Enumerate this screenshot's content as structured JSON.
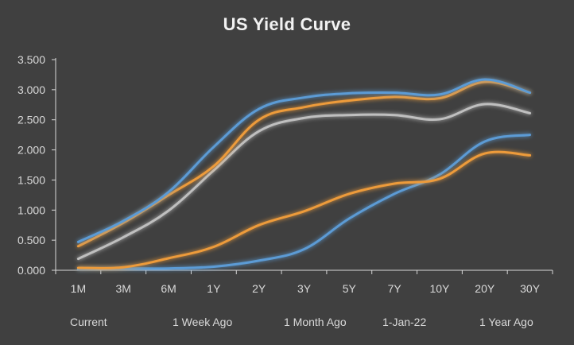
{
  "chart_data": {
    "type": "line",
    "title": "US Yield Curve",
    "xlabel": "",
    "ylabel": "",
    "categories": [
      "1M",
      "3M",
      "6M",
      "1Y",
      "2Y",
      "3Y",
      "5Y",
      "7Y",
      "10Y",
      "20Y",
      "30Y"
    ],
    "ylim": [
      0,
      3.5
    ],
    "yticks": [
      "0.000",
      "0.500",
      "1.000",
      "1.500",
      "2.000",
      "2.500",
      "3.000",
      "3.500"
    ],
    "grid": false,
    "legend_position": "bottom",
    "series": [
      {
        "name": "Current",
        "color": "#5b9bd5",
        "values": [
          0.47,
          0.82,
          1.3,
          2.05,
          2.68,
          2.87,
          2.94,
          2.95,
          2.92,
          3.17,
          2.95
        ]
      },
      {
        "name": "1 Week Ago",
        "color": "#ed9b3a",
        "values": [
          0.4,
          0.79,
          1.25,
          1.73,
          2.5,
          2.71,
          2.82,
          2.88,
          2.86,
          3.13,
          2.95
        ]
      },
      {
        "name": "1 Month Ago",
        "color": "#bfbfbf",
        "values": [
          0.19,
          0.55,
          0.99,
          1.66,
          2.31,
          2.53,
          2.58,
          2.58,
          2.51,
          2.76,
          2.61
        ]
      },
      {
        "name": "1-Jan-22",
        "color": "#ed9b3a",
        "values": [
          0.04,
          0.05,
          0.2,
          0.39,
          0.75,
          0.98,
          1.27,
          1.44,
          1.52,
          1.94,
          1.91
        ]
      },
      {
        "name": "1 Year Ago",
        "color": "#5b9bd5",
        "values": [
          0.02,
          0.03,
          0.03,
          0.06,
          0.16,
          0.35,
          0.86,
          1.27,
          1.59,
          2.14,
          2.25
        ]
      }
    ]
  }
}
